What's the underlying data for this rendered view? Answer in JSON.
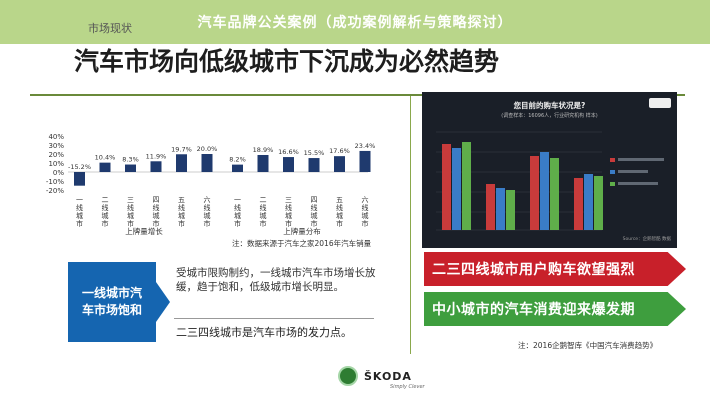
{
  "banner": {
    "title": "汽车品牌公关案例（成功案例解析与策略探讨）"
  },
  "slide": {
    "section_label": "市场现状",
    "headline": "汽车市场向低级城市下沉成为必然趋势"
  },
  "chart_data": {
    "type": "bar",
    "groups": [
      {
        "name": "上牌量增长",
        "categories": [
          "一线城市",
          "二线城市",
          "三线城市",
          "四线城市",
          "五线城市",
          "六线城市"
        ],
        "values": [
          -15.2,
          10.4,
          8.3,
          11.9,
          19.7,
          20.0
        ]
      },
      {
        "name": "上牌量分布",
        "categories": [
          "一线城市",
          "二线城市",
          "三线城市",
          "四线城市",
          "五线城市",
          "六线城市"
        ],
        "values": [
          8.2,
          18.9,
          16.6,
          15.5,
          17.6,
          23.4
        ]
      }
    ],
    "value_labels": [
      "-15.2%",
      "10.4%",
      "8.3%",
      "11.9%",
      "19.7%",
      "20.0%",
      "8.2%",
      "18.9%",
      "16.6%",
      "15.5%",
      "17.6%",
      "23.4%"
    ],
    "yticks": [
      "40%",
      "30%",
      "20%",
      "10%",
      "0%",
      "-10%",
      "-20%"
    ],
    "ylim": [
      -20,
      40
    ],
    "color": "#1f3a6e",
    "note": "注：数据来源于汽车之家2016年汽车销量"
  },
  "left_panel": {
    "box_label": "一线城市汽车市场饱和",
    "description": "受城市限购制约，一线城市汽车市场增长放缓，趋于饱和，低级城市增长明显。",
    "conclusion": "二三四线城市是汽车市场的发力点。"
  },
  "right_panel": {
    "photo": {
      "title": "您目前的购车状况是?",
      "subtitle": "(调查样本：16096人，行业研究机构 样本)",
      "note": "Source：企鹅智酷 数据"
    },
    "banner_red": "二三四线城市用户购车欲望强烈",
    "banner_green": "中小城市的汽车消费迎来爆发期",
    "note": "注：2016企鹅智库《中国汽车消费趋势》"
  },
  "footer": {
    "brand": "ŠKODA",
    "tagline": "Simply Clever"
  }
}
